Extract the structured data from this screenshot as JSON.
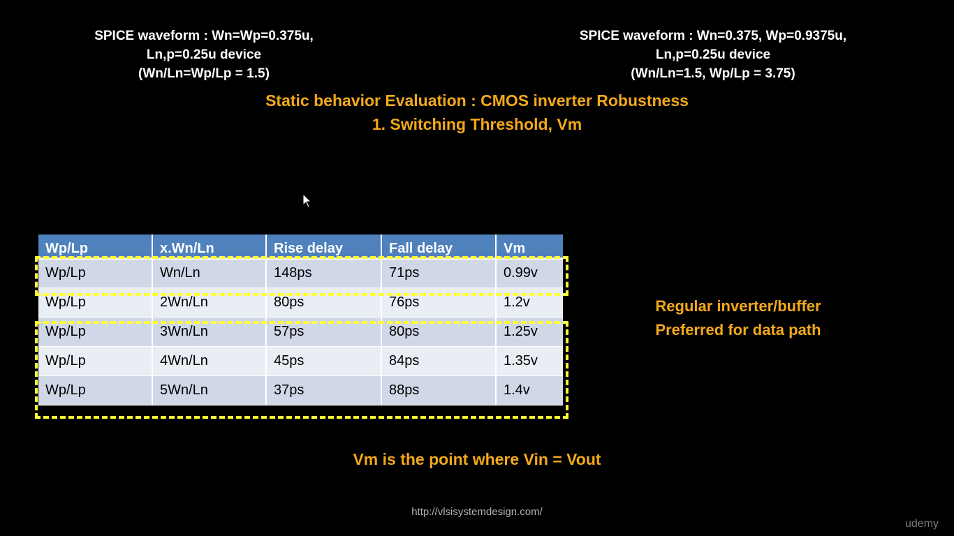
{
  "captions": {
    "left": [
      "SPICE waveform : Wn=Wp=0.375u,",
      "Ln,p=0.25u device",
      "(Wn/Ln=Wp/Lp = 1.5)"
    ],
    "right": [
      "SPICE waveform : Wn=0.375, Wp=0.9375u,",
      "Ln,p=0.25u device",
      "(Wn/Ln=1.5, Wp/Lp = 3.75)"
    ]
  },
  "title": {
    "line1": "Static behavior Evaluation : CMOS inverter Robustness",
    "line2": "1. Switching Threshold, Vm"
  },
  "table": {
    "headers": [
      "Wp/Lp",
      "x.Wn/Ln",
      "Rise delay",
      "Fall delay",
      "Vm"
    ],
    "rows": [
      [
        "Wp/Lp",
        "Wn/Ln",
        "148ps",
        "71ps",
        "0.99v"
      ],
      [
        "Wp/Lp",
        "2Wn/Ln",
        "80ps",
        "76ps",
        "1.2v"
      ],
      [
        "Wp/Lp",
        "3Wn/Ln",
        "57ps",
        "80ps",
        "1.25v"
      ],
      [
        "Wp/Lp",
        "4Wn/Ln",
        "45ps",
        "84ps",
        "1.35v"
      ],
      [
        "Wp/Lp",
        "5Wn/Ln",
        "37ps",
        "88ps",
        "1.4v"
      ]
    ]
  },
  "side_note": {
    "line1": "Regular inverter/buffer",
    "line2": "Preferred for data path"
  },
  "footer_note": "Vm is the point where Vin = Vout",
  "url": "http://vlsisystemdesign.com/",
  "watermark": "udemy",
  "colors": {
    "background": "#000000",
    "accent_orange": "#f2a91a",
    "table_header": "#4f81bd",
    "highlight_dash": "#ffff33"
  }
}
